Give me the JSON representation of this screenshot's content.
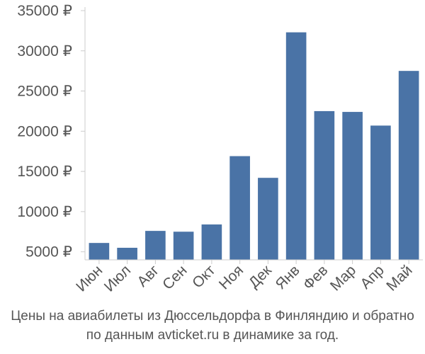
{
  "chart_data": {
    "type": "bar",
    "categories": [
      "Июн",
      "Июл",
      "Авг",
      "Сен",
      "Окт",
      "Ноя",
      "Дек",
      "Янв",
      "Фев",
      "Мар",
      "Апр",
      "Май"
    ],
    "values": [
      6100,
      5500,
      7600,
      7500,
      8400,
      16900,
      14200,
      32300,
      22500,
      22400,
      20700,
      27500
    ],
    "yticks": [
      "5000 ₽",
      "10000 ₽",
      "15000 ₽",
      "20000 ₽",
      "25000 ₽",
      "30000 ₽",
      "35000 ₽"
    ],
    "ytick_values": [
      5000,
      10000,
      15000,
      20000,
      25000,
      30000,
      35000
    ],
    "ylim": [
      4000,
      35000
    ],
    "grid": false,
    "legend": "none",
    "bar_color": "#4a73a6",
    "axis_color": "#cccccc"
  },
  "caption": {
    "line1": "Цены на авиабилеты из Дюссельдорфа в Финляндию и обратно",
    "line2": "по данным avticket.ru в динамике за год."
  }
}
